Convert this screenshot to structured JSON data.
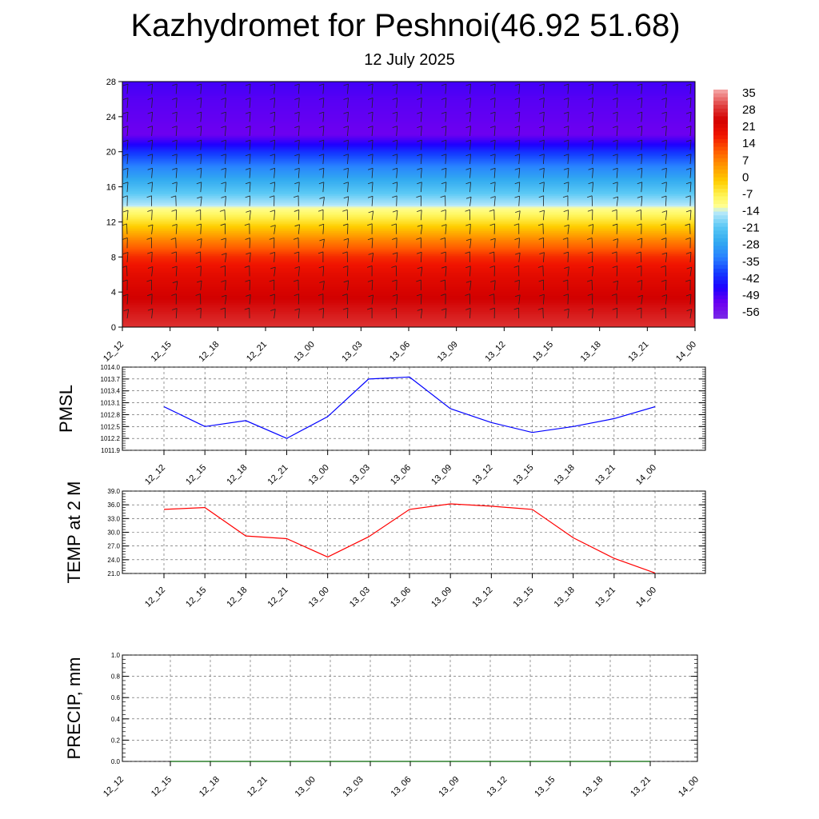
{
  "header": {
    "title": "Kazhydromet for Peshnoi(46.92 51.68)",
    "subtitle": "12 July 2025"
  },
  "time_labels": [
    "12_12",
    "12_15",
    "12_18",
    "12_21",
    "13_00",
    "13_03",
    "13_06",
    "13_09",
    "13_12",
    "13_15",
    "13_18",
    "13_21",
    "14_00"
  ],
  "colors": {
    "pmsl_line": "#0000ff",
    "temp_line": "#ff0000",
    "precip_line": "#006400"
  },
  "chart_data": [
    {
      "type": "heatmap",
      "title": "",
      "xlabel": "",
      "ylabel": "",
      "x": [
        "12_12",
        "12_15",
        "12_18",
        "12_21",
        "13_00",
        "13_03",
        "13_06",
        "13_09",
        "13_12",
        "13_15",
        "13_18",
        "13_21",
        "14_00"
      ],
      "yticks": [
        0,
        4,
        8,
        12,
        16,
        20,
        24,
        28
      ],
      "ylim": [
        0,
        28
      ],
      "colorbar_labels": [
        "35",
        "28",
        "21",
        "14",
        "7",
        "0",
        "-7",
        "-14",
        "-21",
        "-28",
        "-35",
        "-42",
        "-49",
        "-56"
      ],
      "colorbar_range": [
        -63,
        42
      ],
      "temperature_profile": [
        {
          "level": 0,
          "value": 33
        },
        {
          "level": 2,
          "value": 30
        },
        {
          "level": 4,
          "value": 27
        },
        {
          "level": 6,
          "value": 24
        },
        {
          "level": 8,
          "value": 19
        },
        {
          "level": 10,
          "value": 9
        },
        {
          "level": 12,
          "value": -3
        },
        {
          "level": 13.5,
          "value": -11
        },
        {
          "level": 14,
          "value": -15
        },
        {
          "level": 16,
          "value": -24
        },
        {
          "level": 18,
          "value": -33
        },
        {
          "level": 20,
          "value": -43
        },
        {
          "level": 21,
          "value": -50
        },
        {
          "level": 22,
          "value": -56
        },
        {
          "level": 24,
          "value": -55
        },
        {
          "level": 26,
          "value": -54
        },
        {
          "level": 28,
          "value": -52
        }
      ],
      "wind_barbs": true,
      "grid": false
    },
    {
      "type": "line",
      "ylabel": "PMSL",
      "x": [
        "12_12",
        "12_15",
        "12_18",
        "12_21",
        "13_00",
        "13_03",
        "13_06",
        "13_09",
        "13_12",
        "13_15",
        "13_18",
        "13_21",
        "14_00"
      ],
      "series": [
        {
          "values": [
            1013.0,
            1012.5,
            1012.65,
            1012.2,
            1012.75,
            1013.7,
            1013.75,
            1012.95,
            1012.6,
            1012.35,
            1012.5,
            1012.7,
            1013.0
          ]
        }
      ],
      "ylim": [
        1011.9,
        1014.0
      ],
      "yticks": [
        "1011.9",
        "1012.2",
        "1012.5",
        "1012.8",
        "1013.1",
        "1013.4",
        "1013.7",
        "1014.0"
      ],
      "grid": true
    },
    {
      "type": "line",
      "ylabel": "TEMP at 2 M",
      "x": [
        "12_12",
        "12_15",
        "12_18",
        "12_21",
        "13_00",
        "13_03",
        "13_06",
        "13_09",
        "13_12",
        "13_15",
        "13_18",
        "13_21",
        "14_00"
      ],
      "series": [
        {
          "values": [
            35.0,
            35.4,
            29.2,
            28.6,
            24.6,
            29.0,
            35.0,
            36.2,
            35.7,
            35.0,
            28.8,
            24.3,
            21.1
          ]
        }
      ],
      "ylim": [
        21.0,
        39.0
      ],
      "yticks": [
        "21.0",
        "24.0",
        "27.0",
        "30.0",
        "33.0",
        "36.0",
        "39.0"
      ],
      "grid": true
    },
    {
      "type": "line",
      "ylabel": "PRECIP, mm",
      "x": [
        "12_12",
        "12_15",
        "12_18",
        "12_21",
        "13_00",
        "13_03",
        "13_06",
        "13_09",
        "13_12",
        "13_15",
        "13_18",
        "13_21",
        "14_00"
      ],
      "series": [
        {
          "values": [
            0,
            0,
            0,
            0,
            0,
            0,
            0,
            0,
            0,
            0,
            0,
            0,
            0
          ]
        }
      ],
      "ylim": [
        0.0,
        1.0
      ],
      "yticks": [
        "0.0",
        "0.2",
        "0.4",
        "0.6",
        "0.8",
        "1.0"
      ],
      "grid": true
    }
  ]
}
